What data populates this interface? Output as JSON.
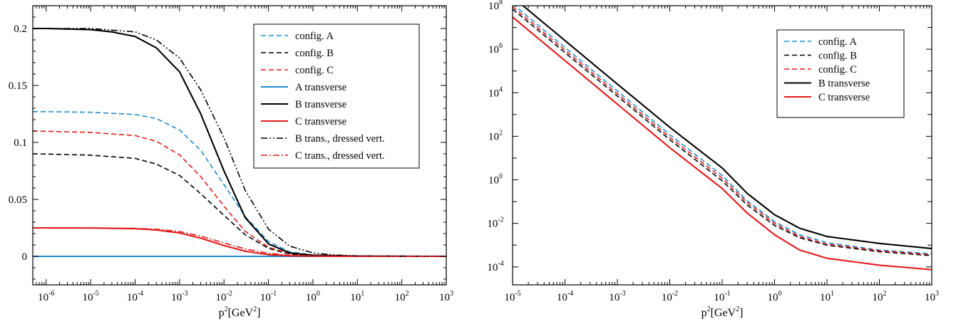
{
  "colors": {
    "A": "#1f8bd0",
    "B": "#000000",
    "C": "#e31a1c"
  },
  "chart_data": [
    {
      "type": "line",
      "xscale": "log",
      "yscale": "linear",
      "xlim": [
        5e-07,
        1000
      ],
      "ylim": [
        -0.025,
        0.22
      ],
      "xlabel": {
        "base": "p",
        "sup": "2",
        "unit_start": "[GeV",
        "unit_sup": "2",
        "unit_end": "]"
      },
      "ylabel": "",
      "x_ticks": [
        {
          "base": "10",
          "exp": "-6",
          "value": 1e-06
        },
        {
          "base": "10",
          "exp": "-5",
          "value": 1e-05
        },
        {
          "base": "10",
          "exp": "-4",
          "value": 0.0001
        },
        {
          "base": "10",
          "exp": "-3",
          "value": 0.001
        },
        {
          "base": "10",
          "exp": "-2",
          "value": 0.01
        },
        {
          "base": "10",
          "exp": "-1",
          "value": 0.1
        },
        {
          "base": "10",
          "exp": "0",
          "value": 1
        },
        {
          "base": "10",
          "exp": "1",
          "value": 10
        },
        {
          "base": "10",
          "exp": "2",
          "value": 100
        },
        {
          "base": "10",
          "exp": "3",
          "value": 1000
        }
      ],
      "y_ticks": [
        {
          "label": "0",
          "value": 0
        },
        {
          "label": "0.05",
          "value": 0.05
        },
        {
          "label": "0.1",
          "value": 0.1
        },
        {
          "label": "0.15",
          "value": 0.15
        },
        {
          "label": "0.2",
          "value": 0.2
        }
      ],
      "grid": false,
      "legend_position": "top-right",
      "series": [
        {
          "name": "config. A",
          "color": "#1f8bd0",
          "dash": "dashed",
          "x": [
            5e-07,
            1e-06,
            1e-05,
            0.0001,
            0.0003,
            0.001,
            0.003,
            0.01,
            0.03,
            0.1,
            0.3,
            1,
            10,
            1000
          ],
          "y": [
            0.127,
            0.127,
            0.1265,
            0.1245,
            0.121,
            0.111,
            0.093,
            0.063,
            0.035,
            0.013,
            0.004,
            0.0012,
            0.0002,
            0.0
          ]
        },
        {
          "name": "config. B",
          "color": "#000000",
          "dash": "dashed",
          "x": [
            5e-07,
            1e-06,
            1e-05,
            0.0001,
            0.0003,
            0.001,
            0.003,
            0.01,
            0.03,
            0.1,
            0.3,
            1,
            10,
            1000
          ],
          "y": [
            0.09,
            0.0898,
            0.0888,
            0.086,
            0.081,
            0.071,
            0.055,
            0.036,
            0.019,
            0.007,
            0.002,
            0.0008,
            0.0002,
            0.0
          ]
        },
        {
          "name": "config. C",
          "color": "#e31a1c",
          "dash": "dashed",
          "x": [
            5e-07,
            1e-06,
            1e-05,
            0.0001,
            0.0003,
            0.001,
            0.003,
            0.01,
            0.03,
            0.1,
            0.3,
            1,
            10,
            1000
          ],
          "y": [
            0.11,
            0.1098,
            0.1088,
            0.106,
            0.101,
            0.089,
            0.07,
            0.044,
            0.022,
            0.008,
            0.0025,
            0.0009,
            0.0002,
            0.0
          ]
        },
        {
          "name": "A transverse",
          "color": "#1f8bd0",
          "dash": "solid",
          "x": [
            5e-07,
            1000
          ],
          "y": [
            0.0,
            0.0
          ]
        },
        {
          "name": "B transverse",
          "color": "#000000",
          "dash": "solid",
          "x": [
            5e-07,
            1e-06,
            1e-05,
            3e-05,
            0.0001,
            0.0003,
            0.001,
            0.003,
            0.01,
            0.03,
            0.1,
            0.3,
            1,
            10,
            1000
          ],
          "y": [
            0.2,
            0.2,
            0.199,
            0.197,
            0.193,
            0.183,
            0.162,
            0.125,
            0.075,
            0.034,
            0.011,
            0.003,
            0.001,
            0.0002,
            0.0
          ]
        },
        {
          "name": "C transverse",
          "color": "#e31a1c",
          "dash": "solid",
          "x": [
            5e-07,
            1e-06,
            1e-05,
            0.0001,
            0.0003,
            0.001,
            0.003,
            0.01,
            0.03,
            0.1,
            0.3,
            1,
            10,
            1000
          ],
          "y": [
            0.025,
            0.025,
            0.0249,
            0.0243,
            0.0232,
            0.0205,
            0.016,
            0.0095,
            0.0045,
            0.0015,
            0.0005,
            0.0002,
            0.0,
            0.0
          ]
        },
        {
          "name": "B trans., dressed vert.",
          "color": "#000000",
          "dash": "dashdotdot",
          "x": [
            5e-07,
            1e-06,
            1e-05,
            0.0001,
            0.0003,
            0.001,
            0.003,
            0.01,
            0.03,
            0.1,
            0.3,
            1,
            3,
            10,
            1000
          ],
          "y": [
            0.2,
            0.2,
            0.2,
            0.197,
            0.19,
            0.174,
            0.146,
            0.104,
            0.058,
            0.024,
            0.009,
            0.003,
            0.0012,
            0.0004,
            0.0
          ]
        },
        {
          "name": "C trans., dressed vert.",
          "color": "#e31a1c",
          "dash": "dashdot",
          "x": [
            5e-07,
            1e-06,
            1e-05,
            0.0001,
            0.0003,
            0.001,
            0.003,
            0.01,
            0.03,
            0.1,
            0.3,
            1,
            10,
            1000
          ],
          "y": [
            0.025,
            0.025,
            0.025,
            0.0246,
            0.0238,
            0.0218,
            0.0178,
            0.0118,
            0.0065,
            0.0027,
            0.0009,
            0.0003,
            0.0,
            0.0
          ]
        }
      ]
    },
    {
      "type": "line",
      "xscale": "log",
      "yscale": "log",
      "xlim": [
        1e-05,
        1000
      ],
      "ylim": [
        1.5e-05,
        100000000.0
      ],
      "xlabel": {
        "base": "p",
        "sup": "2",
        "unit_start": "[GeV",
        "unit_sup": "2",
        "unit_end": "]"
      },
      "ylabel": "",
      "x_ticks": [
        {
          "base": "10",
          "exp": "-5",
          "value": 1e-05
        },
        {
          "base": "10",
          "exp": "-4",
          "value": 0.0001
        },
        {
          "base": "10",
          "exp": "-3",
          "value": 0.001
        },
        {
          "base": "10",
          "exp": "-2",
          "value": 0.01
        },
        {
          "base": "10",
          "exp": "-1",
          "value": 0.1
        },
        {
          "base": "10",
          "exp": "0",
          "value": 1
        },
        {
          "base": "10",
          "exp": "1",
          "value": 10
        },
        {
          "base": "10",
          "exp": "2",
          "value": 100
        },
        {
          "base": "10",
          "exp": "3",
          "value": 1000
        }
      ],
      "y_ticks": [
        {
          "base": "10",
          "exp": "-4",
          "value": 0.0001
        },
        {
          "base": "10",
          "exp": "-2",
          "value": 0.01
        },
        {
          "base": "10",
          "exp": "0",
          "value": 1
        },
        {
          "base": "10",
          "exp": "2",
          "value": 100
        },
        {
          "base": "10",
          "exp": "4",
          "value": 10000.0
        },
        {
          "base": "10",
          "exp": "6",
          "value": 1000000.0
        },
        {
          "base": "10",
          "exp": "8",
          "value": 100000000.0
        }
      ],
      "grid": false,
      "legend_position": "top-right",
      "series": [
        {
          "name": "config. A",
          "color": "#1f8bd0",
          "dash": "dashed",
          "x": [
            1e-05,
            0.0001,
            0.001,
            0.01,
            0.1,
            0.3,
            1,
            3,
            10,
            100,
            1000
          ],
          "y": [
            120000000.0,
            1200000.0,
            12000.0,
            120,
            1.6,
            0.11,
            0.012,
            0.003,
            0.0013,
            0.0006,
            0.0004
          ]
        },
        {
          "name": "config. B",
          "color": "#000000",
          "dash": "dashed",
          "x": [
            1e-05,
            0.0001,
            0.001,
            0.01,
            0.1,
            0.3,
            1,
            3,
            10,
            100,
            1000
          ],
          "y": [
            70000000.0,
            700000.0,
            7000.0,
            70,
            0.9,
            0.07,
            0.008,
            0.0022,
            0.001,
            0.0005,
            0.00033
          ]
        },
        {
          "name": "config. C",
          "color": "#e31a1c",
          "dash": "dashed",
          "x": [
            1e-05,
            0.0001,
            0.001,
            0.01,
            0.1,
            0.3,
            1,
            3,
            10,
            100,
            1000
          ],
          "y": [
            90000000.0,
            900000.0,
            9000.0,
            90,
            1.2,
            0.09,
            0.01,
            0.0025,
            0.0011,
            0.00055,
            0.00036
          ]
        },
        {
          "name": "B transverse",
          "color": "#000000",
          "dash": "solid",
          "x": [
            1e-05,
            0.0001,
            0.001,
            0.01,
            0.1,
            0.3,
            1,
            3,
            10,
            100,
            1000
          ],
          "y": [
            250000000.0,
            2500000.0,
            25000.0,
            260,
            3.5,
            0.24,
            0.025,
            0.006,
            0.0025,
            0.0012,
            0.0007
          ]
        },
        {
          "name": "C transverse",
          "color": "#e31a1c",
          "dash": "solid",
          "x": [
            1e-05,
            0.0001,
            0.001,
            0.01,
            0.1,
            0.3,
            1,
            3,
            10,
            100,
            1000
          ],
          "y": [
            30000000.0,
            300000.0,
            3000.0,
            30,
            0.4,
            0.03,
            0.003,
            0.0006,
            0.00025,
            0.00012,
            7.5e-05
          ]
        }
      ]
    }
  ]
}
